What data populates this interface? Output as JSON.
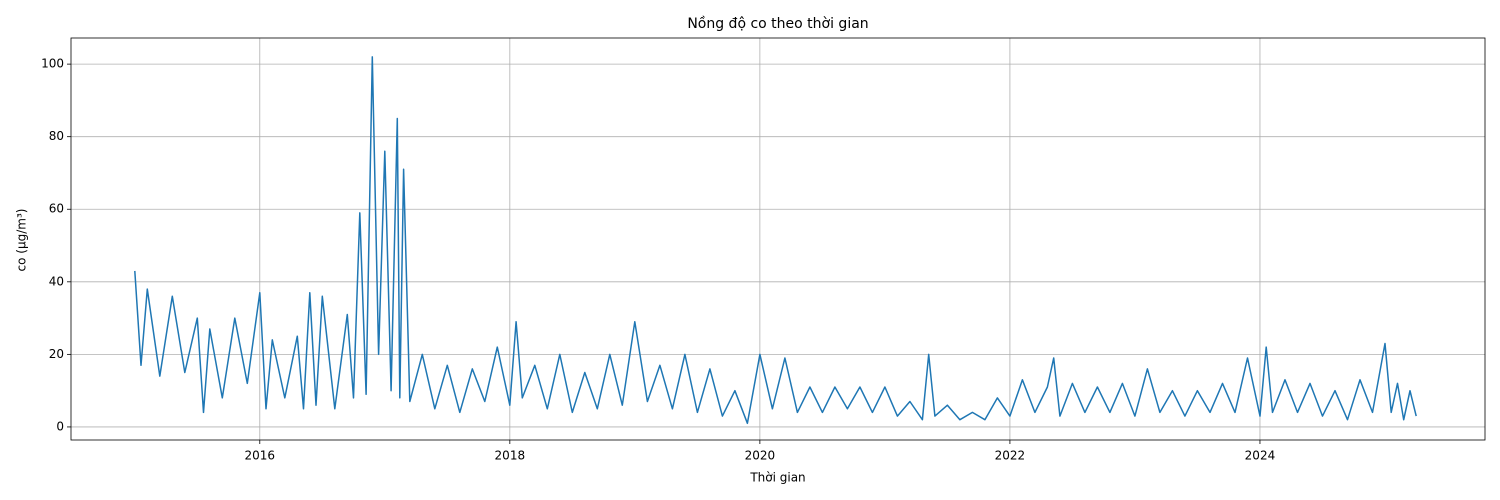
{
  "chart_data": {
    "type": "line",
    "title": "Nồng độ co theo thời gian",
    "x_label": "Thời gian",
    "y_label": "co (µg/m³)",
    "x": [
      2015.0,
      2015.05,
      2015.1,
      2015.2,
      2015.3,
      2015.4,
      2015.5,
      2015.55,
      2015.6,
      2015.7,
      2015.8,
      2015.9,
      2016.0,
      2016.05,
      2016.1,
      2016.2,
      2016.3,
      2016.35,
      2016.4,
      2016.45,
      2016.5,
      2016.6,
      2016.7,
      2016.75,
      2016.8,
      2016.85,
      2016.9,
      2016.95,
      2017.0,
      2017.05,
      2017.1,
      2017.12,
      2017.15,
      2017.2,
      2017.3,
      2017.4,
      2017.5,
      2017.6,
      2017.7,
      2017.8,
      2017.9,
      2018.0,
      2018.05,
      2018.1,
      2018.2,
      2018.3,
      2018.4,
      2018.5,
      2018.6,
      2018.7,
      2018.8,
      2018.9,
      2019.0,
      2019.1,
      2019.2,
      2019.3,
      2019.4,
      2019.5,
      2019.6,
      2019.7,
      2019.8,
      2019.9,
      2020.0,
      2020.1,
      2020.2,
      2020.3,
      2020.4,
      2020.5,
      2020.6,
      2020.7,
      2020.8,
      2020.9,
      2021.0,
      2021.1,
      2021.2,
      2021.3,
      2021.35,
      2021.4,
      2021.5,
      2021.6,
      2021.7,
      2021.8,
      2021.9,
      2022.0,
      2022.1,
      2022.2,
      2022.3,
      2022.35,
      2022.4,
      2022.5,
      2022.6,
      2022.7,
      2022.8,
      2022.9,
      2023.0,
      2023.1,
      2023.2,
      2023.3,
      2023.4,
      2023.5,
      2023.6,
      2023.7,
      2023.8,
      2023.9,
      2024.0,
      2024.05,
      2024.1,
      2024.2,
      2024.3,
      2024.4,
      2024.5,
      2024.6,
      2024.7,
      2024.8,
      2024.9,
      2025.0,
      2025.05,
      2025.1,
      2025.15,
      2025.2,
      2025.25
    ],
    "series": [
      {
        "name": "co",
        "color": "#1f77b4",
        "values": [
          43,
          17,
          38,
          14,
          36,
          15,
          30,
          4,
          27,
          8,
          30,
          12,
          37,
          5,
          24,
          8,
          25,
          5,
          37,
          6,
          36,
          5,
          31,
          8,
          59,
          9,
          102,
          20,
          76,
          10,
          85,
          8,
          71,
          7,
          20,
          5,
          17,
          4,
          16,
          7,
          22,
          6,
          29,
          8,
          17,
          5,
          20,
          4,
          15,
          5,
          20,
          6,
          29,
          7,
          17,
          5,
          20,
          4,
          16,
          3,
          10,
          1,
          20,
          5,
          19,
          4,
          11,
          4,
          11,
          5,
          11,
          4,
          11,
          3,
          7,
          2,
          20,
          3,
          6,
          2,
          4,
          2,
          8,
          3,
          13,
          4,
          11,
          19,
          3,
          12,
          4,
          11,
          4,
          12,
          3,
          16,
          4,
          10,
          3,
          10,
          4,
          12,
          4,
          19,
          3,
          22,
          4,
          13,
          4,
          12,
          3,
          10,
          2,
          13,
          4,
          23,
          4,
          12,
          2,
          10,
          3
        ]
      }
    ],
    "xlim": [
      2014.49,
      2025.8
    ],
    "ylim": [
      -3.6,
      107.2
    ],
    "xticks": [
      2016,
      2018,
      2020,
      2022,
      2024
    ],
    "yticks": [
      0,
      20,
      40,
      60,
      80,
      100
    ],
    "grid": true
  }
}
